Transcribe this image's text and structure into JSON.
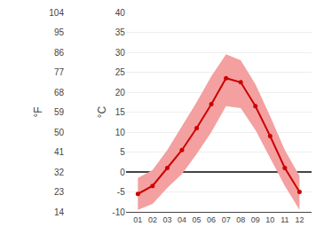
{
  "chart_data": {
    "type": "line",
    "categories": [
      "01",
      "02",
      "03",
      "04",
      "05",
      "06",
      "07",
      "08",
      "09",
      "10",
      "11",
      "12"
    ],
    "series": [
      {
        "type": "band",
        "color": "#f4a0a0",
        "low": [
          -9.5,
          -8.0,
          -4.0,
          -0.5,
          4.5,
          10.0,
          16.5,
          16.0,
          10.5,
          3.5,
          -3.5,
          -9.5
        ],
        "high": [
          -1.5,
          0.5,
          5.5,
          11.5,
          17.5,
          24.0,
          29.5,
          28.0,
          22.0,
          14.0,
          5.5,
          -1.0
        ]
      },
      {
        "type": "line",
        "color": "#cc0000",
        "marker": "circle",
        "values": [
          -5.5,
          -3.5,
          1.0,
          5.5,
          11.0,
          17.0,
          23.5,
          22.5,
          16.5,
          9.0,
          1.0,
          -5.0
        ]
      }
    ],
    "ylim": [
      -10,
      40
    ],
    "yticks": [
      -10,
      -5,
      0,
      5,
      10,
      15,
      20,
      25,
      30,
      35,
      40
    ],
    "ylabel": "°C",
    "y2lim": [
      14,
      104
    ],
    "y2ticks": [
      14,
      23,
      32,
      41,
      50,
      59,
      68,
      77,
      86,
      95,
      104
    ],
    "y2label": "°F",
    "grid": true
  }
}
